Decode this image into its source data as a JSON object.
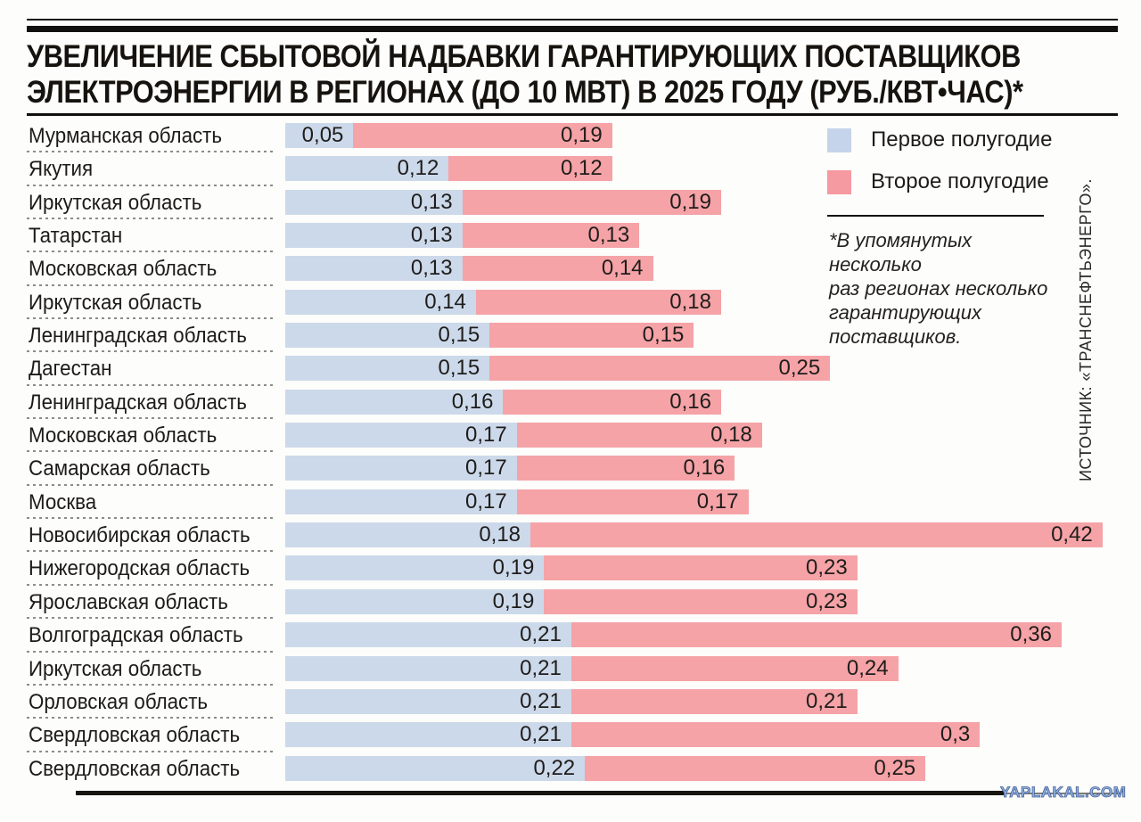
{
  "title": {
    "line1": "УВЕЛИЧЕНИЕ СБЫТОВОЙ НАДБАВКИ ГАРАНТИРУЮЩИХ ПОСТАВЩИКОВ",
    "line2": "ЭЛЕКТРОЭНЕРГИИ В РЕГИОНАХ (ДО 10 МВТ) В 2025 ГОДУ (РУБ./КВТ•ЧАС)*"
  },
  "legend": {
    "items": [
      {
        "label": "Первое полугодие",
        "color": "#c5d4ea"
      },
      {
        "label": "Второе полугодие",
        "color": "#f59aa0"
      }
    ]
  },
  "footnote": {
    "lines": [
      "*В упомянутых несколько",
      "раз регионах несколько",
      "гарантирующих",
      "поставщиков."
    ]
  },
  "source": "ИСТОЧНИК: «ТРАНСНЕФТЬЭНЕРГО».",
  "watermark": "YAPLAKAL.COM",
  "chart_data": {
    "type": "bar",
    "orientation": "horizontal",
    "stacked": true,
    "title": "Увеличение сбытовой надбавки гарантирующих поставщиков электроэнергии в регионах (до 10 МВт) в 2025 году (руб./кВт•час)",
    "unit": "руб./кВт•час",
    "series_names": [
      "Первое полугодие",
      "Второе полугодие"
    ],
    "colors": {
      "first_half": "#ccd9ea",
      "second_half": "#f5a3a7"
    },
    "x_max_visible": 0.63,
    "rows": [
      {
        "region": "Мурманская область",
        "first_half": 0.05,
        "second_half": 0.19,
        "first_label": "0,05",
        "second_label": "0,19"
      },
      {
        "region": "Якутия",
        "first_half": 0.12,
        "second_half": 0.12,
        "first_label": "0,12",
        "second_label": "0,12"
      },
      {
        "region": "Иркутская область",
        "first_half": 0.13,
        "second_half": 0.19,
        "first_label": "0,13",
        "second_label": "0,19"
      },
      {
        "region": "Татарстан",
        "first_half": 0.13,
        "second_half": 0.13,
        "first_label": "0,13",
        "second_label": "0,13"
      },
      {
        "region": "Московская область",
        "first_half": 0.13,
        "second_half": 0.14,
        "first_label": "0,13",
        "second_label": "0,14"
      },
      {
        "region": "Иркутская область",
        "first_half": 0.14,
        "second_half": 0.18,
        "first_label": "0,14",
        "second_label": "0,18"
      },
      {
        "region": "Ленинградская область",
        "first_half": 0.15,
        "second_half": 0.15,
        "first_label": "0,15",
        "second_label": "0,15"
      },
      {
        "region": "Дагестан",
        "first_half": 0.15,
        "second_half": 0.25,
        "first_label": "0,15",
        "second_label": "0,25"
      },
      {
        "region": "Ленинградская область",
        "first_half": 0.16,
        "second_half": 0.16,
        "first_label": "0,16",
        "second_label": "0,16"
      },
      {
        "region": "Московская область",
        "first_half": 0.17,
        "second_half": 0.18,
        "first_label": "0,17",
        "second_label": "0,18"
      },
      {
        "region": "Самарская область",
        "first_half": 0.17,
        "second_half": 0.16,
        "first_label": "0,17",
        "second_label": "0,16"
      },
      {
        "region": "Москва",
        "first_half": 0.17,
        "second_half": 0.17,
        "first_label": "0,17",
        "second_label": "0,17"
      },
      {
        "region": "Новосибирская область",
        "first_half": 0.18,
        "second_half": 0.42,
        "first_label": "0,18",
        "second_label": "0,42"
      },
      {
        "region": "Нижегородская область",
        "first_half": 0.19,
        "second_half": 0.23,
        "first_label": "0,19",
        "second_label": "0,23"
      },
      {
        "region": "Ярославская область",
        "first_half": 0.19,
        "second_half": 0.23,
        "first_label": "0,19",
        "second_label": "0,23"
      },
      {
        "region": "Волгоградская область",
        "first_half": 0.21,
        "second_half": 0.36,
        "first_label": "0,21",
        "second_label": "0,36"
      },
      {
        "region": "Иркутская область",
        "first_half": 0.21,
        "second_half": 0.24,
        "first_label": "0,21",
        "second_label": "0,24"
      },
      {
        "region": "Орловская область",
        "first_half": 0.21,
        "second_half": 0.21,
        "first_label": "0,21",
        "second_label": "0,21"
      },
      {
        "region": "Свердловская область",
        "first_half": 0.21,
        "second_half": 0.3,
        "first_label": "0,21",
        "second_label": "0,3"
      },
      {
        "region": "Свердловская область",
        "first_half": 0.22,
        "second_half": 0.25,
        "first_label": "0,22",
        "second_label": "0,25"
      }
    ]
  }
}
